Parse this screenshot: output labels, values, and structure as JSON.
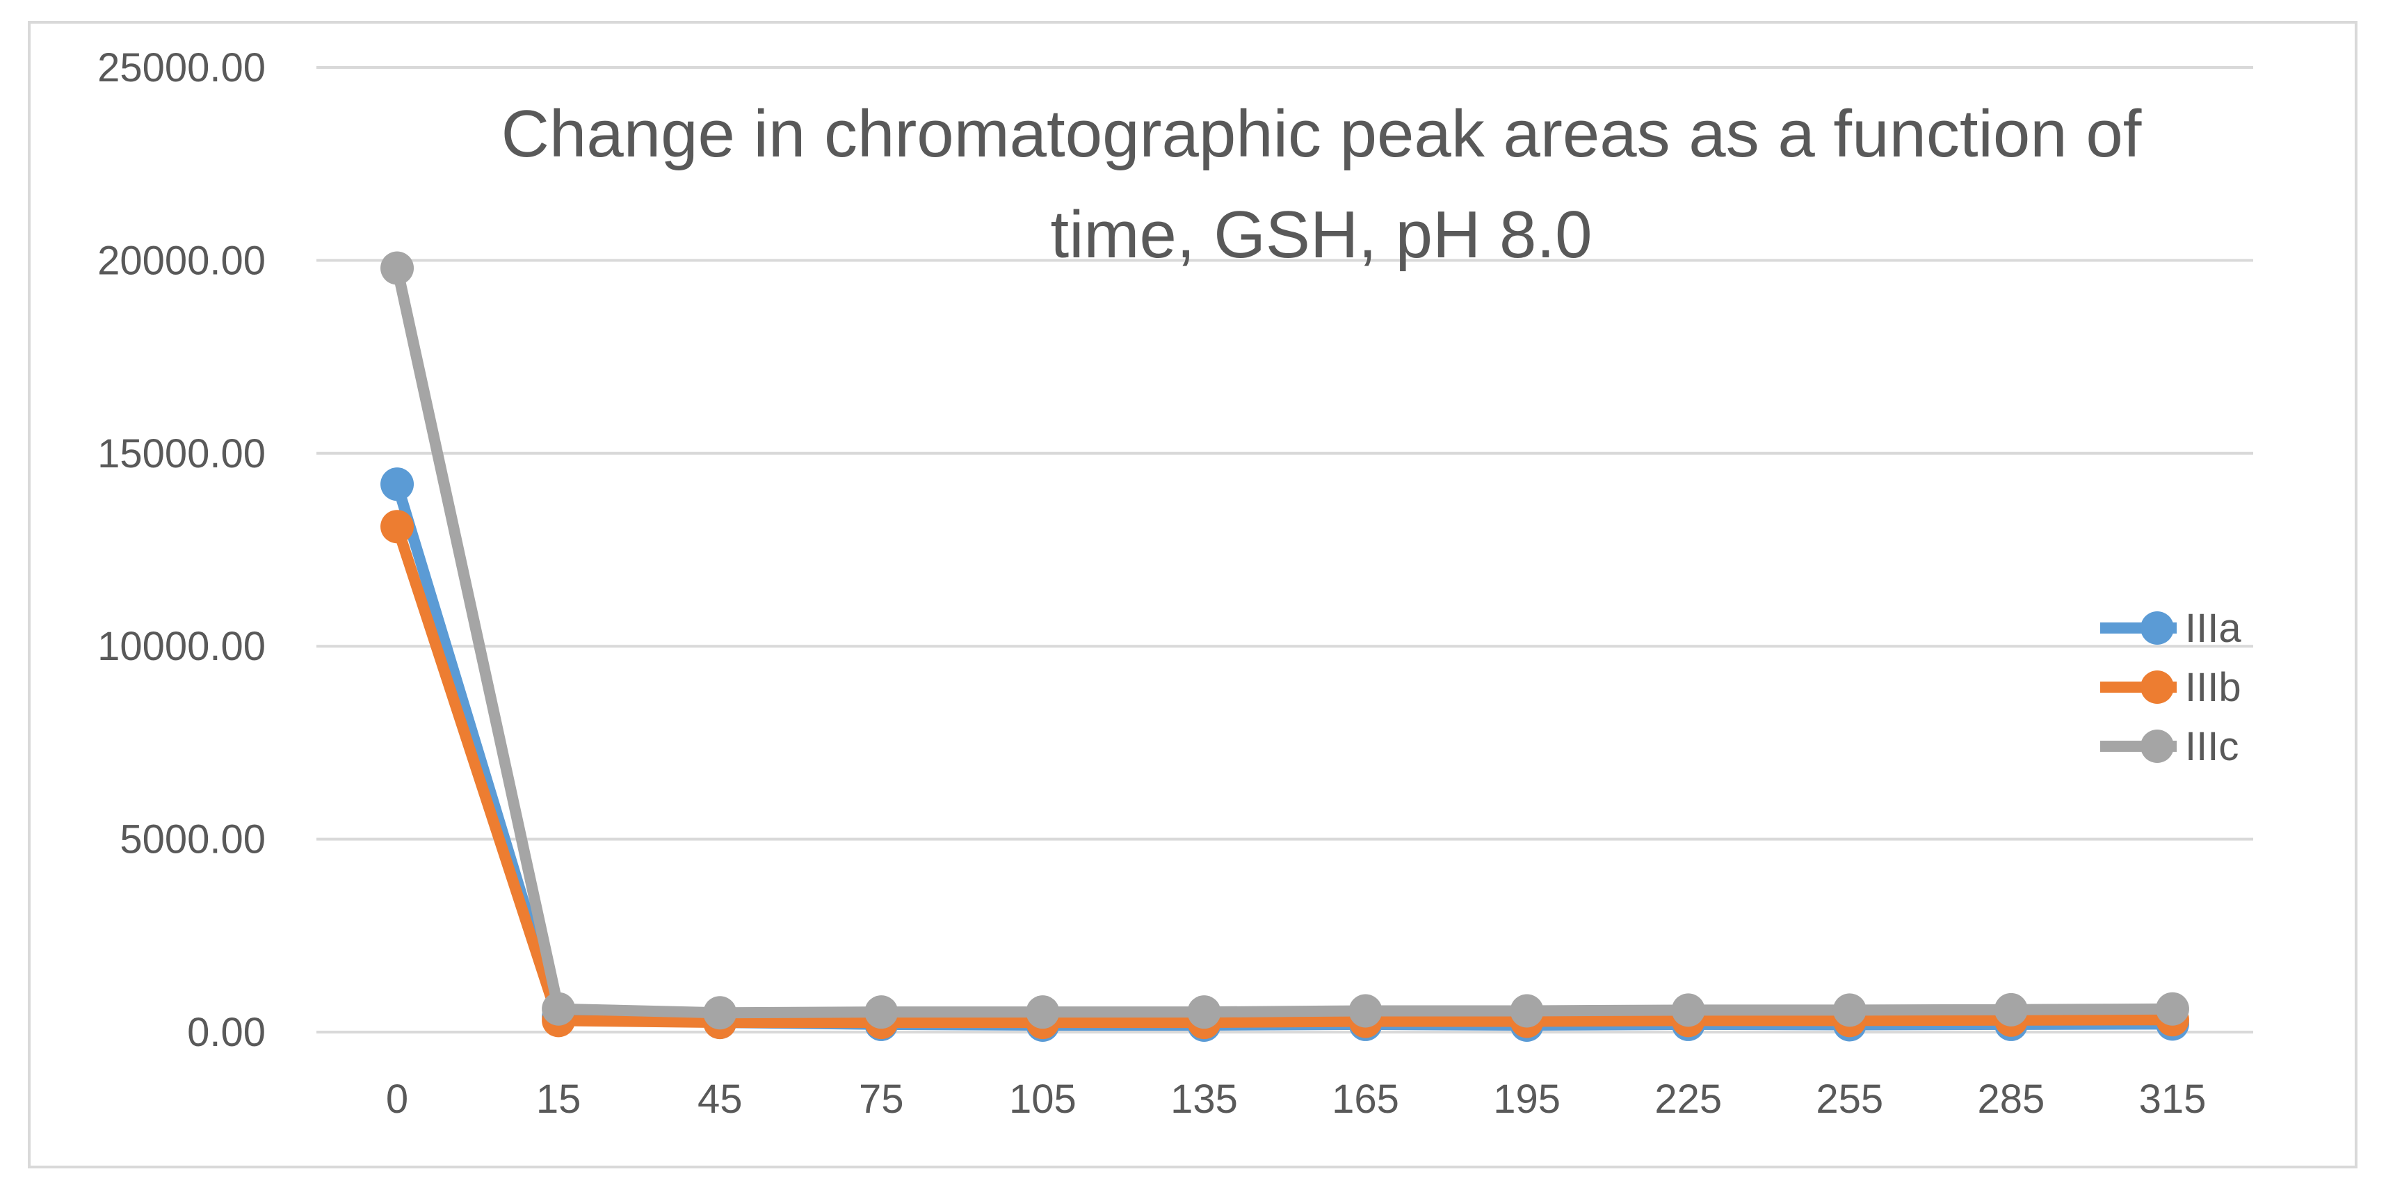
{
  "chart_data": {
    "type": "line",
    "title_lines": [
      "Change in chromatographic peak areas as a function of",
      "time, GSH, pH 8.0"
    ],
    "xlabel": "",
    "ylabel": "",
    "categories": [
      "0",
      "15",
      "45",
      "75",
      "105",
      "135",
      "165",
      "195",
      "225",
      "255",
      "285",
      "315"
    ],
    "y_ticks": [
      "0.00",
      "5000.00",
      "10000.00",
      "15000.00",
      "20000.00",
      "25000.00"
    ],
    "ylim": [
      0,
      25000
    ],
    "grid": true,
    "legend_position": "right",
    "series": [
      {
        "name": "IIIa",
        "color": "#5b9bd5",
        "values": [
          14200,
          400,
          250,
          200,
          180,
          180,
          200,
          180,
          200,
          190,
          200,
          210
        ]
      },
      {
        "name": "IIIb",
        "color": "#ed7d31",
        "values": [
          13100,
          300,
          250,
          250,
          250,
          250,
          280,
          280,
          300,
          300,
          310,
          320
        ]
      },
      {
        "name": "IIIc",
        "color": "#a5a5a5",
        "values": [
          19800,
          600,
          500,
          520,
          520,
          520,
          550,
          550,
          570,
          570,
          580,
          600
        ]
      }
    ]
  }
}
